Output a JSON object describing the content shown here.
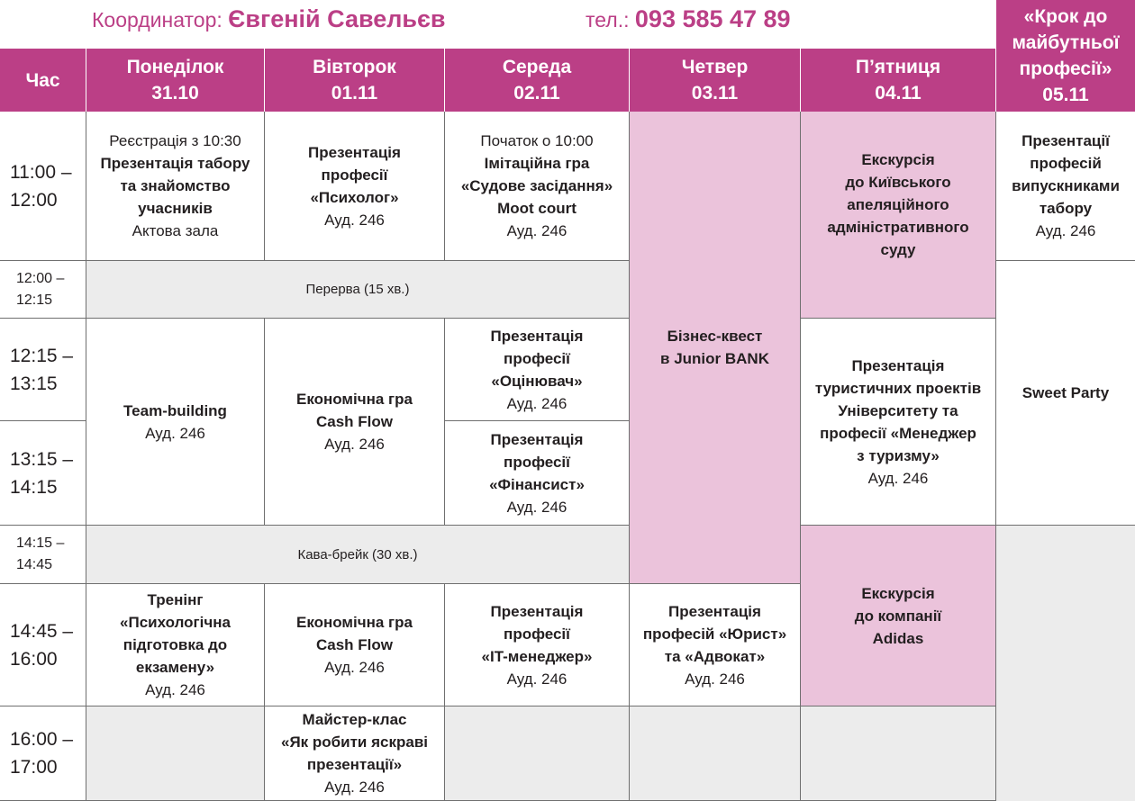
{
  "coordinator": {
    "label": "Координатор:",
    "name": "Євгеній Савельєв",
    "phone_label": "тел.:",
    "phone": "093 585 47 89"
  },
  "header": {
    "time": "Час",
    "mon": {
      "day": "Понеділок",
      "date": "31.10"
    },
    "tue": {
      "day": "Вівторок",
      "date": "01.11"
    },
    "wed": {
      "day": "Середа",
      "date": "02.11"
    },
    "thu": {
      "day": "Четвер",
      "date": "03.11"
    },
    "fri": {
      "day": "П’ятниця",
      "date": "04.11"
    },
    "sat": {
      "l1": "«Крок до",
      "l2": "майбутньої",
      "l3": "професії»",
      "date": "05.11"
    }
  },
  "times": {
    "t1": [
      "11:00 –",
      "12:00"
    ],
    "t2": [
      "12:00 –",
      "12:15"
    ],
    "t3": [
      "12:15 –",
      "13:15"
    ],
    "t4": [
      "13:15 –",
      "14:15"
    ],
    "t5": [
      "14:15 –",
      "14:45"
    ],
    "t6": [
      "14:45 –",
      "16:00"
    ],
    "t7": [
      "16:00 –",
      "17:00"
    ]
  },
  "events": {
    "mon1": {
      "pre": "Реєстрація з 10:30",
      "b1": "Презентація табору",
      "b2": "та знайомство",
      "b3": "учасників",
      "room": "Актова зала"
    },
    "tue1": {
      "b1": "Презентація",
      "b2": "професії",
      "b3": "«Психолог»",
      "room": "Ауд. 246"
    },
    "wed1": {
      "pre": "Початок о 10:00",
      "b1": "Імітаційна гра",
      "b2": "«Судове засідання»",
      "b3": "Moot court",
      "room": "Ауд. 246"
    },
    "thu_quest": {
      "b1": "Бізнес-квест",
      "b2": "в Junior BANK"
    },
    "fri1": {
      "b1": "Екскурсія",
      "b2": "до Київського",
      "b3": "апеляційного",
      "b4": "адміністративного",
      "b5": "суду"
    },
    "sat1": {
      "b1": "Презентації",
      "b2": "професій",
      "b3": "випускниками",
      "b4": "табору",
      "room": "Ауд. 246"
    },
    "break1": "Перерва (15 хв.)",
    "sat2": "Sweet Party",
    "mon2": {
      "b1": "Team-building",
      "room": "Ауд. 246"
    },
    "tue2": {
      "b1": "Економічна гра",
      "b2": "Cash Flow",
      "room": "Ауд. 246"
    },
    "wed2": {
      "b1": "Презентація",
      "b2": "професії",
      "b3": "«Оцінювач»",
      "room": "Ауд. 246"
    },
    "wed3": {
      "b1": "Презентація",
      "b2": "професії",
      "b3": "«Фінансист»",
      "room": "Ауд. 246"
    },
    "fri2": {
      "b1": "Презентація",
      "b2": "туристичних проектів",
      "b3": "Університету та",
      "b4": "професії «Менеджер",
      "b5": "з туризму»",
      "room": "Ауд. 246"
    },
    "break2": "Кава-брейк (30 хв.)",
    "mon3": {
      "b1": "Тренінг",
      "b2": "«Психологічна",
      "b3": "підготовка до",
      "b4": "екзамену»",
      "room": "Ауд. 246"
    },
    "tue3": {
      "b1": "Економічна гра",
      "b2": "Cash Flow",
      "room": "Ауд. 246"
    },
    "wed4": {
      "b1": "Презентація",
      "b2": "професії",
      "b3": "«IT-менеджер»",
      "room": "Ауд. 246"
    },
    "thu2": {
      "b1": "Презентація",
      "b2": "професій «Юрист»",
      "b3": "та «Адвокат»",
      "room": "Ауд. 246"
    },
    "fri3": {
      "b1": "Екскурсія",
      "b2": "до компанії",
      "b3": "Adidas"
    },
    "tue4": {
      "b1": "Майстер-клас",
      "b2": "«Як робити яскраві",
      "b3": "презентації»",
      "room": "Ауд. 246"
    }
  },
  "colors": {
    "accent": "#bb3f86",
    "pink_cell": "#ebc3db",
    "gray_cell": "#ececec"
  }
}
